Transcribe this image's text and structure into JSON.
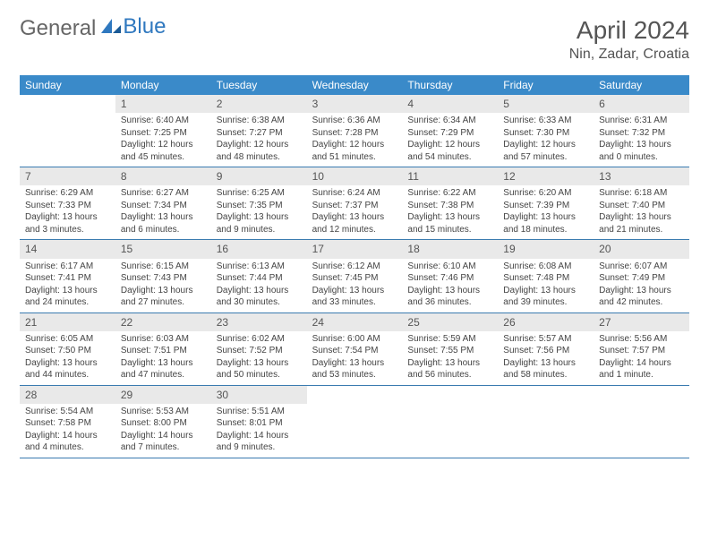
{
  "logo": {
    "text_general": "General",
    "text_blue": "Blue"
  },
  "header": {
    "month_title": "April 2024",
    "location": "Nin, Zadar, Croatia"
  },
  "colors": {
    "header_bg": "#3a8ac9",
    "header_text": "#ffffff",
    "daynum_bg": "#e9e9e9",
    "week_border": "#3a7bb0",
    "text": "#444444",
    "logo_gray": "#666666",
    "logo_blue": "#2f78bf"
  },
  "weekdays": [
    "Sunday",
    "Monday",
    "Tuesday",
    "Wednesday",
    "Thursday",
    "Friday",
    "Saturday"
  ],
  "weeks": [
    [
      {
        "n": "",
        "sr": "",
        "ss": "",
        "dl1": "",
        "dl2": ""
      },
      {
        "n": "1",
        "sr": "Sunrise: 6:40 AM",
        "ss": "Sunset: 7:25 PM",
        "dl1": "Daylight: 12 hours",
        "dl2": "and 45 minutes."
      },
      {
        "n": "2",
        "sr": "Sunrise: 6:38 AM",
        "ss": "Sunset: 7:27 PM",
        "dl1": "Daylight: 12 hours",
        "dl2": "and 48 minutes."
      },
      {
        "n": "3",
        "sr": "Sunrise: 6:36 AM",
        "ss": "Sunset: 7:28 PM",
        "dl1": "Daylight: 12 hours",
        "dl2": "and 51 minutes."
      },
      {
        "n": "4",
        "sr": "Sunrise: 6:34 AM",
        "ss": "Sunset: 7:29 PM",
        "dl1": "Daylight: 12 hours",
        "dl2": "and 54 minutes."
      },
      {
        "n": "5",
        "sr": "Sunrise: 6:33 AM",
        "ss": "Sunset: 7:30 PM",
        "dl1": "Daylight: 12 hours",
        "dl2": "and 57 minutes."
      },
      {
        "n": "6",
        "sr": "Sunrise: 6:31 AM",
        "ss": "Sunset: 7:32 PM",
        "dl1": "Daylight: 13 hours",
        "dl2": "and 0 minutes."
      }
    ],
    [
      {
        "n": "7",
        "sr": "Sunrise: 6:29 AM",
        "ss": "Sunset: 7:33 PM",
        "dl1": "Daylight: 13 hours",
        "dl2": "and 3 minutes."
      },
      {
        "n": "8",
        "sr": "Sunrise: 6:27 AM",
        "ss": "Sunset: 7:34 PM",
        "dl1": "Daylight: 13 hours",
        "dl2": "and 6 minutes."
      },
      {
        "n": "9",
        "sr": "Sunrise: 6:25 AM",
        "ss": "Sunset: 7:35 PM",
        "dl1": "Daylight: 13 hours",
        "dl2": "and 9 minutes."
      },
      {
        "n": "10",
        "sr": "Sunrise: 6:24 AM",
        "ss": "Sunset: 7:37 PM",
        "dl1": "Daylight: 13 hours",
        "dl2": "and 12 minutes."
      },
      {
        "n": "11",
        "sr": "Sunrise: 6:22 AM",
        "ss": "Sunset: 7:38 PM",
        "dl1": "Daylight: 13 hours",
        "dl2": "and 15 minutes."
      },
      {
        "n": "12",
        "sr": "Sunrise: 6:20 AM",
        "ss": "Sunset: 7:39 PM",
        "dl1": "Daylight: 13 hours",
        "dl2": "and 18 minutes."
      },
      {
        "n": "13",
        "sr": "Sunrise: 6:18 AM",
        "ss": "Sunset: 7:40 PM",
        "dl1": "Daylight: 13 hours",
        "dl2": "and 21 minutes."
      }
    ],
    [
      {
        "n": "14",
        "sr": "Sunrise: 6:17 AM",
        "ss": "Sunset: 7:41 PM",
        "dl1": "Daylight: 13 hours",
        "dl2": "and 24 minutes."
      },
      {
        "n": "15",
        "sr": "Sunrise: 6:15 AM",
        "ss": "Sunset: 7:43 PM",
        "dl1": "Daylight: 13 hours",
        "dl2": "and 27 minutes."
      },
      {
        "n": "16",
        "sr": "Sunrise: 6:13 AM",
        "ss": "Sunset: 7:44 PM",
        "dl1": "Daylight: 13 hours",
        "dl2": "and 30 minutes."
      },
      {
        "n": "17",
        "sr": "Sunrise: 6:12 AM",
        "ss": "Sunset: 7:45 PM",
        "dl1": "Daylight: 13 hours",
        "dl2": "and 33 minutes."
      },
      {
        "n": "18",
        "sr": "Sunrise: 6:10 AM",
        "ss": "Sunset: 7:46 PM",
        "dl1": "Daylight: 13 hours",
        "dl2": "and 36 minutes."
      },
      {
        "n": "19",
        "sr": "Sunrise: 6:08 AM",
        "ss": "Sunset: 7:48 PM",
        "dl1": "Daylight: 13 hours",
        "dl2": "and 39 minutes."
      },
      {
        "n": "20",
        "sr": "Sunrise: 6:07 AM",
        "ss": "Sunset: 7:49 PM",
        "dl1": "Daylight: 13 hours",
        "dl2": "and 42 minutes."
      }
    ],
    [
      {
        "n": "21",
        "sr": "Sunrise: 6:05 AM",
        "ss": "Sunset: 7:50 PM",
        "dl1": "Daylight: 13 hours",
        "dl2": "and 44 minutes."
      },
      {
        "n": "22",
        "sr": "Sunrise: 6:03 AM",
        "ss": "Sunset: 7:51 PM",
        "dl1": "Daylight: 13 hours",
        "dl2": "and 47 minutes."
      },
      {
        "n": "23",
        "sr": "Sunrise: 6:02 AM",
        "ss": "Sunset: 7:52 PM",
        "dl1": "Daylight: 13 hours",
        "dl2": "and 50 minutes."
      },
      {
        "n": "24",
        "sr": "Sunrise: 6:00 AM",
        "ss": "Sunset: 7:54 PM",
        "dl1": "Daylight: 13 hours",
        "dl2": "and 53 minutes."
      },
      {
        "n": "25",
        "sr": "Sunrise: 5:59 AM",
        "ss": "Sunset: 7:55 PM",
        "dl1": "Daylight: 13 hours",
        "dl2": "and 56 minutes."
      },
      {
        "n": "26",
        "sr": "Sunrise: 5:57 AM",
        "ss": "Sunset: 7:56 PM",
        "dl1": "Daylight: 13 hours",
        "dl2": "and 58 minutes."
      },
      {
        "n": "27",
        "sr": "Sunrise: 5:56 AM",
        "ss": "Sunset: 7:57 PM",
        "dl1": "Daylight: 14 hours",
        "dl2": "and 1 minute."
      }
    ],
    [
      {
        "n": "28",
        "sr": "Sunrise: 5:54 AM",
        "ss": "Sunset: 7:58 PM",
        "dl1": "Daylight: 14 hours",
        "dl2": "and 4 minutes."
      },
      {
        "n": "29",
        "sr": "Sunrise: 5:53 AM",
        "ss": "Sunset: 8:00 PM",
        "dl1": "Daylight: 14 hours",
        "dl2": "and 7 minutes."
      },
      {
        "n": "30",
        "sr": "Sunrise: 5:51 AM",
        "ss": "Sunset: 8:01 PM",
        "dl1": "Daylight: 14 hours",
        "dl2": "and 9 minutes."
      },
      {
        "n": "",
        "sr": "",
        "ss": "",
        "dl1": "",
        "dl2": ""
      },
      {
        "n": "",
        "sr": "",
        "ss": "",
        "dl1": "",
        "dl2": ""
      },
      {
        "n": "",
        "sr": "",
        "ss": "",
        "dl1": "",
        "dl2": ""
      },
      {
        "n": "",
        "sr": "",
        "ss": "",
        "dl1": "",
        "dl2": ""
      }
    ]
  ]
}
